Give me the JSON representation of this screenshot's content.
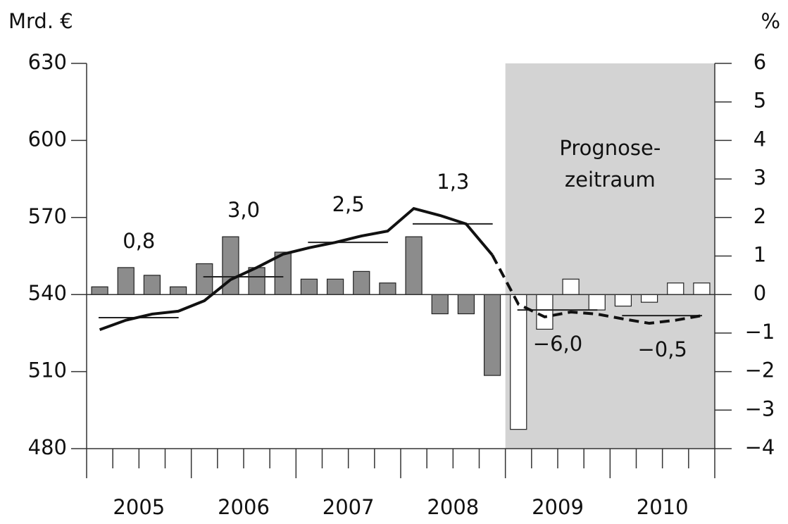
{
  "chart_data": {
    "type": "bar_line",
    "y_axis_label": "Mrd. €",
    "y2_axis_label": "%",
    "categories": [
      null,
      null,
      null,
      null,
      null,
      null,
      null,
      null,
      null,
      null,
      null,
      null,
      null,
      null,
      null,
      null,
      null,
      null,
      null,
      null,
      null,
      null,
      null,
      null
    ],
    "years": [
      "2005",
      "2006",
      "2007",
      "2008",
      "2009",
      "2010"
    ],
    "ylim": [
      480,
      630
    ],
    "yticks": [
      480,
      510,
      540,
      570,
      600,
      630
    ],
    "y2lim": [
      -4,
      6
    ],
    "y2ticks": [
      {
        "value": -4,
        "label": "−4"
      },
      {
        "value": -3,
        "label": "−3"
      },
      {
        "value": -2,
        "label": "−2"
      },
      {
        "value": -1,
        "label": "−1"
      },
      0,
      1,
      2,
      3,
      4,
      5,
      6
    ],
    "forecast_from_index": 16,
    "forecast_label": [
      "Prognose-",
      "zeitraum"
    ],
    "forecast_shade_color": "#d3d3d3",
    "bars": {
      "axis": "y2",
      "color": "#8c8c8c",
      "forecast_color": "#ffffff",
      "values": [
        0.2,
        0.7,
        0.5,
        0.2,
        0.8,
        1.5,
        0.7,
        1.1,
        0.4,
        0.4,
        0.6,
        0.3,
        1.5,
        -0.5,
        -0.5,
        -2.1,
        -3.5,
        -0.9,
        0.4,
        -0.4,
        -0.3,
        -0.2,
        0.3,
        0.3
      ]
    },
    "series": [
      {
        "axis": "y",
        "color": "#111111",
        "dashed": false,
        "values": [
          526.3,
          530,
          532.4,
          533.5,
          537.6,
          545.8,
          550.5,
          555.7,
          558.2,
          560.3,
          562.8,
          564.7,
          573.5,
          570.8,
          567.5,
          555.4,
          null,
          null,
          null,
          null,
          null,
          null,
          null,
          null
        ]
      },
      {
        "axis": "y",
        "color": "#111111",
        "dashed": true,
        "values": [
          null,
          null,
          null,
          null,
          null,
          null,
          null,
          null,
          null,
          null,
          null,
          null,
          null,
          null,
          null,
          555.4,
          536.2,
          531.3,
          533.2,
          532.4,
          530.5,
          528.8,
          530,
          531.8
        ]
      }
    ],
    "annual": {
      "axis": "y",
      "values": [
        531,
        546.9,
        560.3,
        567.5,
        534,
        531.8
      ],
      "growth": [
        0.8,
        3.0,
        2.5,
        1.3,
        -6.0,
        -0.5
      ],
      "growth_labels": [
        "0,8",
        "3,0",
        "2,5",
        "1,3",
        "−6,0",
        "−0,5"
      ]
    }
  }
}
